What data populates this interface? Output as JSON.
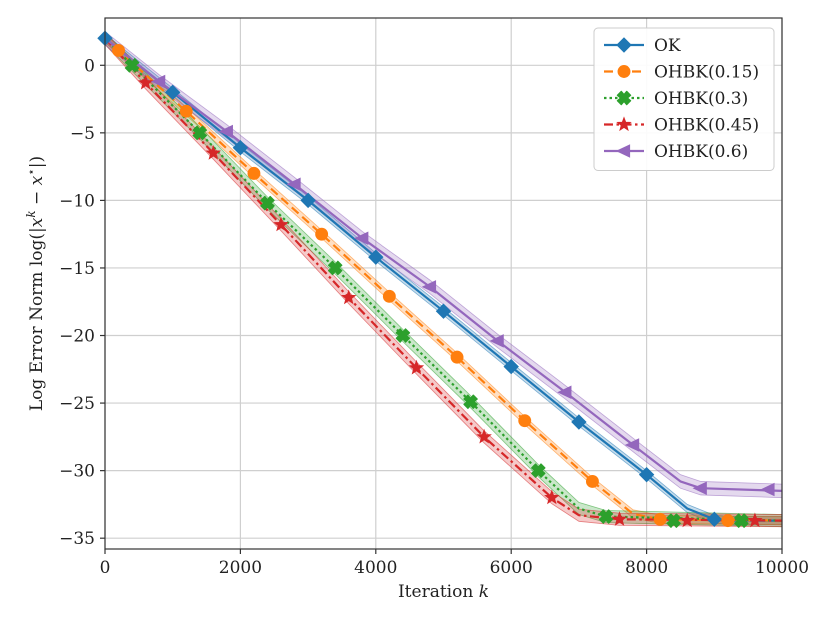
{
  "chart_data": {
    "type": "line",
    "title": "",
    "xlabel": "Iteration k",
    "ylabel": "Log Error Norm log(|x^k − x*|)",
    "xlabel_parts": {
      "text": "Iteration ",
      "var": "k"
    },
    "ylabel_parts": {
      "prefix": "Log Error Norm log(|",
      "x": "x",
      "k": "k",
      "minus": " − ",
      "x2": "x",
      "star": "⋆",
      "suffix": "|)"
    },
    "xlim": [
      0,
      10000
    ],
    "ylim": [
      -35.8,
      3.5
    ],
    "xticks": [
      0,
      2000,
      4000,
      6000,
      8000,
      10000
    ],
    "xtick_labels": [
      "0",
      "2000",
      "4000",
      "6000",
      "8000",
      "10000"
    ],
    "yticks": [
      0,
      -5,
      -10,
      -15,
      -20,
      -25,
      -30,
      -35
    ],
    "ytick_labels": [
      "0",
      "−5",
      "−10",
      "−15",
      "−20",
      "−25",
      "−30",
      "−35"
    ],
    "grid": true,
    "legend_position": "top-right",
    "series": [
      {
        "name": "OK",
        "color": "#1f77b4",
        "dash": "solid",
        "marker": "diamond",
        "x": [
          0,
          1000,
          2000,
          3000,
          4000,
          5000,
          6000,
          7000,
          8000,
          8600,
          9000,
          9300,
          10000
        ],
        "y": [
          2.0,
          -2.0,
          -6.1,
          -10.0,
          -14.2,
          -18.2,
          -22.3,
          -26.4,
          -30.3,
          -32.8,
          -33.6,
          -33.7,
          -33.7
        ],
        "band": 0.3,
        "markers_x": [
          0,
          1000,
          2000,
          3000,
          4000,
          5000,
          6000,
          7000,
          8000,
          9000
        ],
        "markers_y": [
          2.0,
          -2.0,
          -6.1,
          -10.0,
          -14.2,
          -18.2,
          -22.3,
          -26.4,
          -30.3,
          -33.6
        ]
      },
      {
        "name": "OHBK(0.15)",
        "color": "#ff7f0e",
        "dash": "dashed",
        "marker": "circle",
        "x": [
          0,
          200,
          1200,
          2200,
          3200,
          4200,
          5200,
          6200,
          7200,
          7800,
          8200,
          10000
        ],
        "y": [
          2.0,
          1.1,
          -3.4,
          -8.0,
          -12.5,
          -17.1,
          -21.6,
          -26.3,
          -30.8,
          -33.2,
          -33.6,
          -33.7
        ],
        "band": 0.3,
        "markers_x": [
          200,
          1200,
          2200,
          3200,
          4200,
          5200,
          6200,
          7200,
          8200,
          9200
        ],
        "markers_y": [
          1.1,
          -3.4,
          -8.0,
          -12.5,
          -17.1,
          -21.6,
          -26.3,
          -30.8,
          -33.6,
          -33.7
        ]
      },
      {
        "name": "OHBK(0.3)",
        "color": "#2ca02c",
        "dash": "dotted",
        "marker": "x-filled",
        "x": [
          0,
          400,
          1400,
          2400,
          3400,
          4400,
          5400,
          6400,
          7000,
          7400,
          10000
        ],
        "y": [
          2.0,
          0.0,
          -5.0,
          -10.2,
          -15.0,
          -20.0,
          -24.9,
          -30.0,
          -32.8,
          -33.4,
          -33.7
        ],
        "band": 0.45,
        "markers_x": [
          400,
          1400,
          2400,
          3400,
          4400,
          5400,
          6400,
          7400,
          8400,
          9400
        ],
        "markers_y": [
          0.0,
          -5.0,
          -10.2,
          -15.0,
          -20.0,
          -24.9,
          -30.0,
          -33.4,
          -33.7,
          -33.7
        ]
      },
      {
        "name": "OHBK(0.45)",
        "color": "#d62728",
        "dash": "dashdot",
        "marker": "star",
        "x": [
          0,
          600,
          1600,
          2600,
          3600,
          4600,
          5600,
          6600,
          7000,
          7600,
          10000
        ],
        "y": [
          2.0,
          -1.3,
          -6.5,
          -11.8,
          -17.2,
          -22.4,
          -27.5,
          -32.0,
          -33.3,
          -33.6,
          -33.7
        ],
        "band": 0.45,
        "markers_x": [
          600,
          1600,
          2600,
          3600,
          4600,
          5600,
          6600,
          7600,
          8600,
          9600
        ],
        "markers_y": [
          -1.3,
          -6.5,
          -11.8,
          -17.2,
          -22.4,
          -27.5,
          -32.0,
          -33.6,
          -33.7,
          -33.7
        ]
      },
      {
        "name": "OHBK(0.6)",
        "color": "#9467bd",
        "dash": "solid",
        "marker": "triangle-left",
        "x": [
          0,
          800,
          1800,
          2800,
          3800,
          4800,
          5800,
          6800,
          7800,
          8500,
          8800,
          10000
        ],
        "y": [
          2.0,
          -1.2,
          -4.9,
          -8.8,
          -12.8,
          -16.4,
          -20.4,
          -24.2,
          -28.1,
          -30.8,
          -31.3,
          -31.5
        ],
        "band": 0.5,
        "markers_x": [
          800,
          1800,
          2800,
          3800,
          4800,
          5800,
          6800,
          7800,
          8800,
          9800
        ],
        "markers_y": [
          -1.2,
          -4.9,
          -8.8,
          -12.8,
          -16.4,
          -20.4,
          -24.2,
          -28.1,
          -31.3,
          -31.4
        ]
      }
    ]
  }
}
